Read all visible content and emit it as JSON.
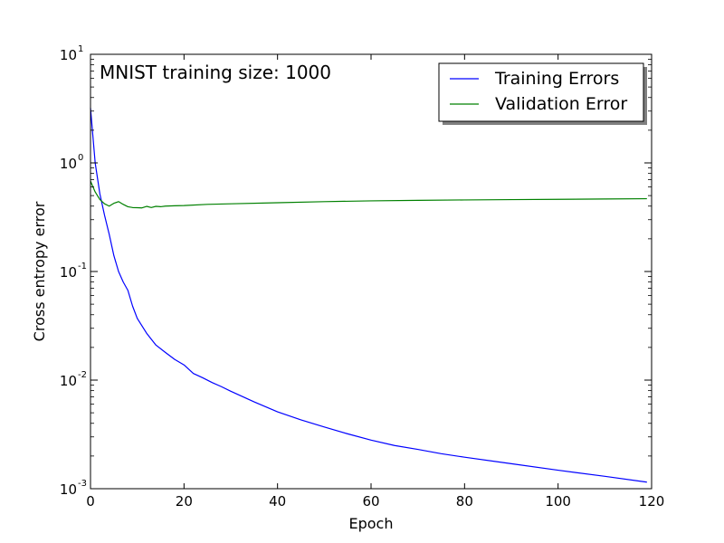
{
  "chart_data": {
    "type": "line",
    "annotation": "MNIST training size: 1000",
    "xlabel": "Epoch",
    "ylabel": "Cross entropy error",
    "xlim": [
      0,
      120
    ],
    "ylim": [
      0.001,
      10
    ],
    "yscale": "log",
    "x_ticks": [
      "0",
      "20",
      "40",
      "60",
      "80",
      "100",
      "120"
    ],
    "y_ticks": [
      {
        "base": "10",
        "exp": "-3"
      },
      {
        "base": "10",
        "exp": "-2"
      },
      {
        "base": "10",
        "exp": "-1"
      },
      {
        "base": "10",
        "exp": "0"
      },
      {
        "base": "10",
        "exp": "1"
      }
    ],
    "grid": false,
    "legend_position": "top-right",
    "series": [
      {
        "name": "Training Errors",
        "color": "#0000ff",
        "x": [
          0,
          1,
          2,
          3,
          4,
          5,
          6,
          7,
          8,
          9,
          10,
          12,
          14,
          16,
          18,
          20,
          22,
          24,
          26,
          28,
          30,
          35,
          40,
          45,
          50,
          55,
          60,
          65,
          70,
          75,
          80,
          90,
          100,
          110,
          119
        ],
        "y": [
          3.2,
          1.0,
          0.52,
          0.33,
          0.22,
          0.14,
          0.1,
          0.08,
          0.067,
          0.048,
          0.037,
          0.027,
          0.021,
          0.018,
          0.0155,
          0.0138,
          0.0115,
          0.0105,
          0.0095,
          0.0087,
          0.0079,
          0.0063,
          0.0051,
          0.0043,
          0.0037,
          0.0032,
          0.0028,
          0.0025,
          0.0023,
          0.0021,
          0.00195,
          0.0017,
          0.00148,
          0.0013,
          0.00115
        ]
      },
      {
        "name": "Validation Error",
        "color": "#008000",
        "x": [
          0,
          1,
          2,
          3,
          4,
          5,
          6,
          7,
          8,
          9,
          10,
          11,
          12,
          13,
          14,
          15,
          16,
          18,
          20,
          25,
          30,
          40,
          50,
          60,
          70,
          80,
          90,
          100,
          110,
          119
        ],
        "y": [
          0.68,
          0.54,
          0.46,
          0.42,
          0.4,
          0.425,
          0.44,
          0.415,
          0.395,
          0.388,
          0.387,
          0.385,
          0.398,
          0.388,
          0.398,
          0.395,
          0.4,
          0.403,
          0.405,
          0.415,
          0.42,
          0.43,
          0.44,
          0.447,
          0.452,
          0.456,
          0.459,
          0.462,
          0.465,
          0.468
        ]
      }
    ]
  }
}
